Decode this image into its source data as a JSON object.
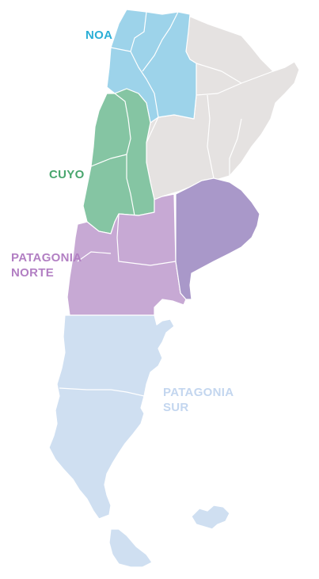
{
  "regions": {
    "noa": {
      "label": "NOA",
      "color": "#9dd3ea",
      "label_color": "#2aaed6"
    },
    "cuyo": {
      "label": "CUYO",
      "color": "#85c5a3",
      "label_color": "#49a66e"
    },
    "patagonia_norte": {
      "label_line1": "PATAGONIA",
      "label_line2": "NORTE",
      "color": "#c7a9d4",
      "label_color": "#b27fc3"
    },
    "patagonia_sur": {
      "label_line1": "PATAGONIA",
      "label_line2": "SUR",
      "color": "#cfdff1",
      "label_color": "#c3d6ef"
    },
    "buenos_aires": {
      "color": "#a998c9"
    },
    "norte_centro": {
      "color": "#e5e2e1"
    }
  }
}
